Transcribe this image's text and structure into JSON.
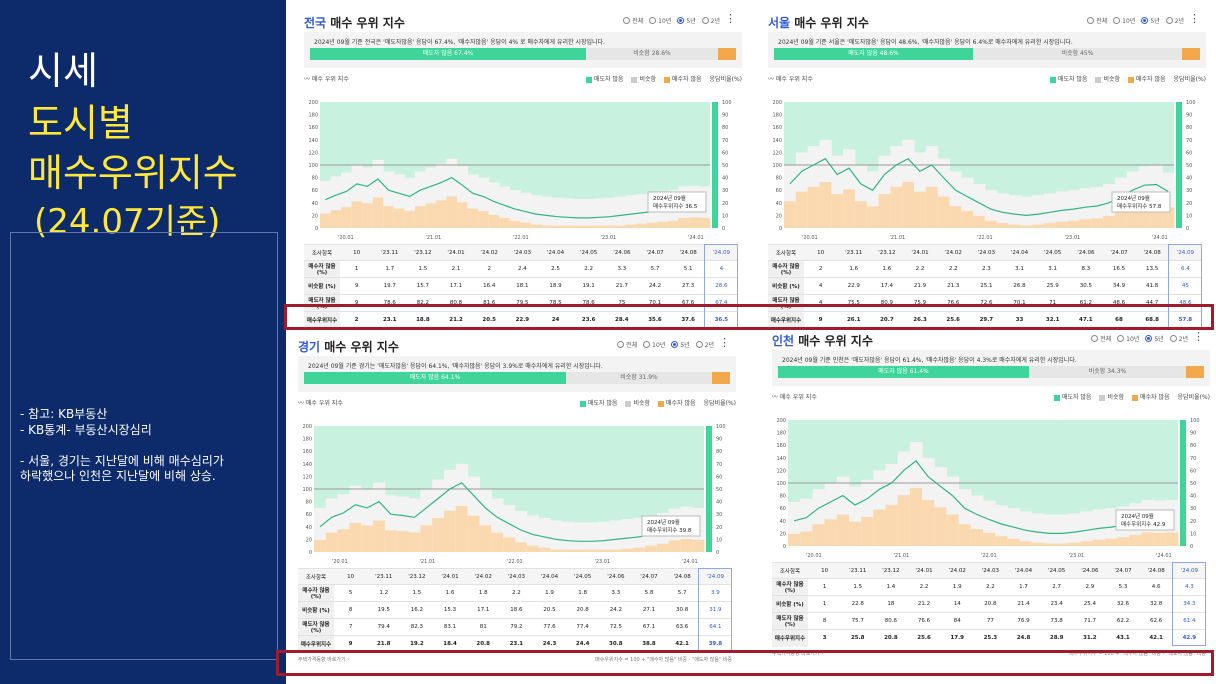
{
  "slide": {
    "title_line1": "시세",
    "title_line2": "도시별",
    "title_line3": "매수우위지수",
    "title_line4": "(24.07기준)",
    "notes": [
      "-  참고: KB부동산",
      "-  KB통계- 부동산시장심리",
      "-  서울, 경기는 지난달에 비해 매수심리가",
      "   하락했으나 인천은 지난달에 비해 상승."
    ]
  },
  "common": {
    "title_suffix": "매수 우위 지수",
    "radio_options": [
      "전체",
      "10년",
      "5년",
      "2년"
    ],
    "radio_selected": "5년",
    "chart_label": "매수 우위 지수",
    "legend": [
      "매도자 많음",
      "비슷함",
      "매수자 많음",
      "응답비율(%)"
    ],
    "table_header": [
      "조사항목",
      "10",
      "'23.11",
      "'23.12",
      "'24.01",
      "'24.02",
      "'24.03",
      "'24.04",
      "'24.05",
      "'24.06",
      "'24.07",
      "'24.08",
      "'24.09"
    ],
    "row_labels": [
      "매수자 많음 (%)",
      "비슷함 (%)",
      "매도자 많음 (%)",
      "매수우위지수"
    ],
    "footer_left": "주택가격동향 바로가기 ›",
    "footer_right": "매수우위지수 = 100 + \"매수자 많음\" 비중 - \"매도자 많음\" 비중",
    "colors": {
      "green": "#3ed49a",
      "orange": "#f3a94b",
      "line_green": "#2fb38a",
      "line_orange": "#f0a040",
      "accent": "#2e5bd8",
      "highlight_red": "#a01c2a"
    }
  },
  "panels": [
    {
      "city": "전국",
      "summary_text": "2024년 09월 기준 전국은 '매도자많음' 응답이 67.4%, '매수자많음' 응답이 4% 로 매수자에게 유리한 시장입니다.",
      "bar_green_label": "매도자 많음 67.4%",
      "bar_mid_label": "비슷함 28.6%",
      "tooltip": [
        "2024년 09월",
        "매수우위지수 36.5"
      ],
      "x_ticks": [
        "'20.01",
        "'21.01",
        "'22.01",
        "'23.01",
        "'24.01"
      ],
      "rows": [
        [
          "1",
          "1.7",
          "1.5",
          "2.1",
          "2",
          "2.4",
          "2.5",
          "2.2",
          "3.3",
          "5.7",
          "5.1",
          "4"
        ],
        [
          "9",
          "19.7",
          "15.7",
          "17.1",
          "16.4",
          "18.1",
          "18.9",
          "19.1",
          "21.7",
          "24.2",
          "27.3",
          "28.6"
        ],
        [
          "9",
          "78.6",
          "82.2",
          "80.8",
          "81.6",
          "79.5",
          "78.5",
          "78.6",
          "75",
          "70.1",
          "67.6",
          "67.4"
        ],
        [
          "2",
          "23.1",
          "18.8",
          "21.2",
          "20.5",
          "22.9",
          "24",
          "23.6",
          "28.4",
          "35.6",
          "37.6",
          "36.5"
        ]
      ],
      "chart_data": {
        "type": "line",
        "series": [
          {
            "values": [
              45,
              52,
              58,
              70,
              66,
              78,
              60,
              55,
              50,
              60,
              66,
              72,
              80,
              68,
              55,
              50,
              42,
              36,
              30,
              26,
              22,
              20,
              18,
              17,
              16,
              16,
              17,
              18,
              20,
              22,
              24,
              26,
              28,
              30,
              36,
              37,
              36
            ]
          }
        ]
      }
    },
    {
      "city": "서울",
      "summary_text": "2024년 09월 기준 서울은 '매도자많음' 응답이 48.6%, '매수자많음' 응답이 6.4%로 매수자에게 유리한 시장입니다.",
      "bar_green_label": "매도자 많음 48.6%",
      "bar_mid_label": "비슷함 45%",
      "tooltip": [
        "2024년 09월",
        "매수우위지수 57.8"
      ],
      "x_ticks": [
        "'20.01",
        "'21.01",
        "'22.01",
        "'23.01",
        "'24.01"
      ],
      "rows": [
        [
          "2",
          "1.6",
          "1.6",
          "2.2",
          "2.2",
          "2.3",
          "3.1",
          "3.1",
          "8.3",
          "16.5",
          "13.5",
          "6.4"
        ],
        [
          "4",
          "22.9",
          "17.4",
          "21.9",
          "21.3",
          "25.1",
          "26.8",
          "25.9",
          "30.5",
          "34.9",
          "41.8",
          "45"
        ],
        [
          "4",
          "75.5",
          "80.9",
          "75.9",
          "76.6",
          "72.6",
          "70.1",
          "71",
          "61.2",
          "48.6",
          "44.7",
          "48.6"
        ],
        [
          "9",
          "26.1",
          "20.7",
          "26.3",
          "25.6",
          "29.7",
          "33",
          "32.1",
          "47.1",
          "68",
          "68.8",
          "57.8"
        ]
      ],
      "chart_data": {
        "type": "line",
        "series": [
          {
            "values": [
              70,
              90,
              100,
              110,
              85,
              95,
              70,
              60,
              85,
              100,
              110,
              90,
              100,
              80,
              60,
              50,
              40,
              30,
              25,
              22,
              20,
              22,
              25,
              28,
              30,
              33,
              35,
              40,
              50,
              60,
              68,
              69,
              58
            ]
          }
        ]
      }
    },
    {
      "city": "경기",
      "summary_text": "2024년 09월 기준 경기는 '매도자많음' 응답이 64.1%, '매수자많음' 응답이 3.9%로 매수자에게 유리한 시장입니다.",
      "bar_green_label": "매도자 많음 64.1%",
      "bar_mid_label": "비슷함 31.9%",
      "tooltip": [
        "2024년 09월",
        "매수우위지수 39.8"
      ],
      "x_ticks": [
        "'20.01",
        "'21.01",
        "'22.01",
        "'23.01",
        "'24.01"
      ],
      "rows": [
        [
          "5",
          "1.2",
          "1.5",
          "1.6",
          "1.8",
          "2.2",
          "1.9",
          "1.8",
          "3.3",
          "5.8",
          "5.7",
          "3.9"
        ],
        [
          "8",
          "19.5",
          "16.2",
          "15.3",
          "17.1",
          "18.6",
          "20.5",
          "20.8",
          "24.2",
          "27.1",
          "30.8",
          "31.9"
        ],
        [
          "7",
          "79.4",
          "82.3",
          "83.1",
          "81",
          "79.2",
          "77.6",
          "77.4",
          "72.5",
          "67.1",
          "63.6",
          "64.1"
        ],
        [
          "9",
          "21.8",
          "19.2",
          "18.4",
          "20.8",
          "23.1",
          "24.3",
          "24.4",
          "30.8",
          "38.8",
          "42.1",
          "39.8"
        ]
      ],
      "chart_data": {
        "type": "line",
        "series": [
          {
            "values": [
              40,
              55,
              62,
              75,
              70,
              80,
              60,
              58,
              55,
              70,
              85,
              100,
              110,
              90,
              70,
              55,
              45,
              35,
              28,
              24,
              20,
              18,
              17,
              17,
              18,
              20,
              22,
              24,
              28,
              32,
              39,
              42,
              40
            ]
          }
        ]
      }
    },
    {
      "city": "인천",
      "summary_text": "2024년 09월 기준 인천은 '매도자많음' 응답이 61.4%, '매수자많음' 응답이 4.3%로 매수자에게 유리한 시장입니다.",
      "bar_green_label": "매도자 많음 61.4%",
      "bar_mid_label": "비슷함 34.3%",
      "tooltip": [
        "2024년 09월",
        "매수우위지수 42.9"
      ],
      "x_ticks": [
        "'20.01",
        "'21.01",
        "'22.01",
        "'23.01",
        "'24.01"
      ],
      "rows": [
        [
          "1",
          "1.5",
          "1.4",
          "2.2",
          "1.9",
          "2.2",
          "1.7",
          "2.7",
          "2.9",
          "5.3",
          "4.6",
          "4.3"
        ],
        [
          "1",
          "22.8",
          "18",
          "21.2",
          "14",
          "20.8",
          "21.4",
          "23.4",
          "25.4",
          "32.6",
          "32.8",
          "34.3"
        ],
        [
          "8",
          "75.7",
          "80.6",
          "76.6",
          "84",
          "77",
          "76.9",
          "73.8",
          "71.7",
          "62.2",
          "62.6",
          "61.4"
        ],
        [
          "3",
          "25.8",
          "20.8",
          "25.6",
          "17.9",
          "25.3",
          "24.8",
          "28.9",
          "31.2",
          "43.1",
          "42.1",
          "42.9"
        ]
      ],
      "chart_data": {
        "type": "line",
        "series": [
          {
            "values": [
              40,
              45,
              60,
              70,
              80,
              65,
              75,
              90,
              100,
              120,
              135,
              110,
              95,
              80,
              60,
              50,
              42,
              35,
              30,
              25,
              22,
              20,
              20,
              22,
              25,
              28,
              30,
              33,
              38,
              43,
              42,
              43
            ]
          }
        ]
      }
    }
  ]
}
